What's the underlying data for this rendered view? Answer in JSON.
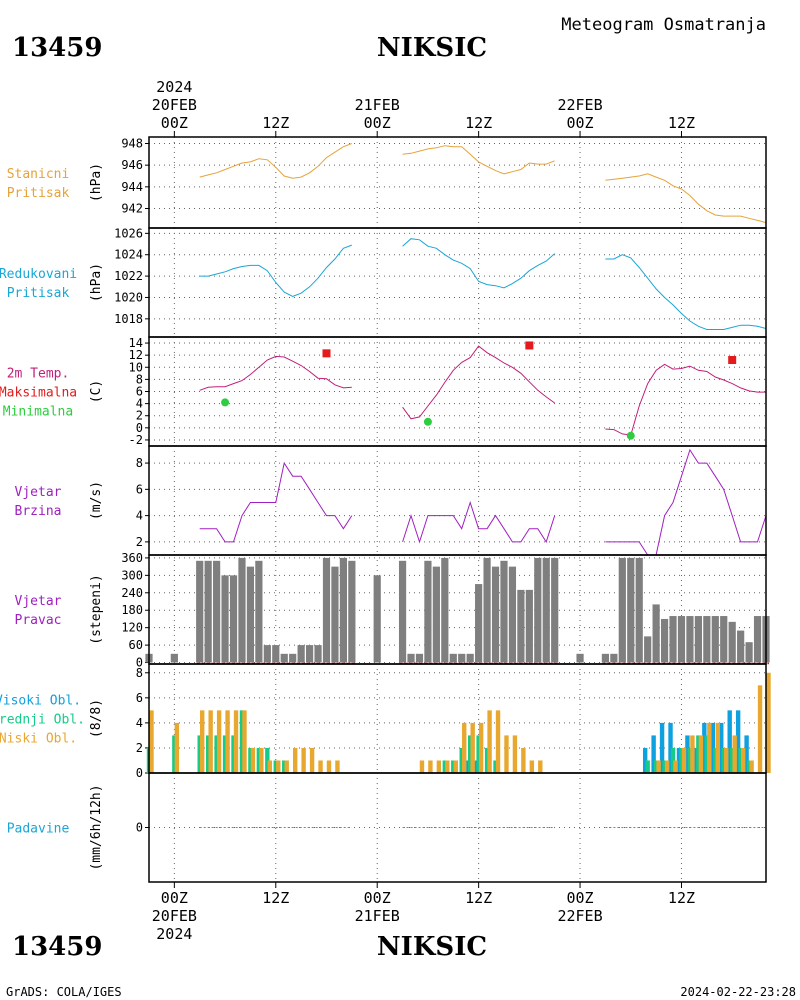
{
  "header": {
    "station_id": "13459",
    "station_name": "NIKSIC",
    "product": "Meteogram Osmatranja"
  },
  "footer": {
    "station_id": "13459",
    "station_name": "NIKSIC",
    "credit": "GrADS: COLA/IGES",
    "timestamp": "2024-02-22-23:28"
  },
  "time_axis": {
    "ticks": [
      {
        "hour": 0,
        "label": "00Z"
      },
      {
        "hour": 12,
        "label": "12Z"
      },
      {
        "hour": 24,
        "label": "00Z"
      },
      {
        "hour": 36,
        "label": "12Z"
      },
      {
        "hour": 48,
        "label": "00Z"
      },
      {
        "hour": 60,
        "label": "12Z"
      }
    ],
    "date_labels": [
      {
        "hour": 0,
        "date": "20FEB",
        "year": "2024"
      },
      {
        "hour": 24,
        "date": "21FEB",
        "year": ""
      },
      {
        "hour": 48,
        "date": "22FEB",
        "year": ""
      }
    ],
    "range_hours": [
      -3,
      70
    ],
    "grid": true
  },
  "colors": {
    "pressure": "#e5a33a",
    "reduced": "#1aa6d6",
    "temp": "#c0207a",
    "tmax": "#e41a1c",
    "tmin": "#2ecc40",
    "wind": "#a020c0",
    "winddir": "#7f7f7f",
    "cl_high": "#0fa0e0",
    "cl_mid": "#14cc88",
    "cl_low": "#e8a830",
    "precip": "#1aa6d6"
  },
  "chart_data": [
    {
      "type": "line",
      "id": "pressure",
      "labels": [
        "Stanicni",
        "Pritisak"
      ],
      "ylabel": "(hPa)",
      "ylim": [
        940.2,
        948.6
      ],
      "yticks": [
        942,
        944,
        946,
        948
      ],
      "series": [
        {
          "x": [
            3,
            4,
            5,
            6,
            7,
            8,
            9,
            10,
            11,
            12,
            13,
            14,
            15,
            16,
            17,
            18,
            19,
            20,
            21
          ],
          "y": [
            944.9,
            945.1,
            945.3,
            945.6,
            945.9,
            946.2,
            946.3,
            946.6,
            946.5,
            945.8,
            945.0,
            944.8,
            944.9,
            945.3,
            945.9,
            946.7,
            947.2,
            947.7,
            948.0
          ]
        },
        {
          "x": [
            27,
            28,
            29,
            30,
            31,
            32,
            33,
            34,
            35,
            36,
            37,
            38,
            39,
            40,
            41,
            42,
            43,
            44,
            45
          ],
          "y": [
            947.0,
            947.1,
            947.3,
            947.5,
            947.6,
            947.8,
            947.7,
            947.7,
            947.0,
            946.3,
            945.9,
            945.5,
            945.2,
            945.4,
            945.6,
            946.2,
            946.1,
            946.1,
            946.4
          ]
        },
        {
          "x": [
            51,
            52,
            53,
            54,
            55,
            56,
            57,
            58,
            59,
            60,
            61,
            62,
            63,
            64,
            65,
            66,
            67,
            68,
            69,
            70
          ],
          "y": [
            944.6,
            944.7,
            944.8,
            944.9,
            945.0,
            945.2,
            944.9,
            944.6,
            944.1,
            943.8,
            943.2,
            942.4,
            941.8,
            941.4,
            941.3,
            941.3,
            941.3,
            941.1,
            940.9,
            940.7
          ]
        }
      ]
    },
    {
      "type": "line",
      "id": "reduced",
      "labels": [
        "Redukovani",
        "Pritisak"
      ],
      "ylabel": "(hPa)",
      "ylim": [
        1016.3,
        1026.5
      ],
      "yticks": [
        1018,
        1020,
        1022,
        1024,
        1026
      ],
      "series": [
        {
          "x": [
            3,
            4,
            5,
            6,
            7,
            8,
            9,
            10,
            11,
            12,
            13,
            14,
            15,
            16,
            17,
            18,
            19,
            20,
            21
          ],
          "y": [
            1022.0,
            1022.0,
            1022.2,
            1022.4,
            1022.7,
            1022.9,
            1023.0,
            1023.0,
            1022.5,
            1021.4,
            1020.5,
            1020.1,
            1020.4,
            1021.0,
            1021.8,
            1022.8,
            1023.6,
            1024.6,
            1024.9
          ]
        },
        {
          "x": [
            27,
            28,
            29,
            30,
            31,
            32,
            33,
            34,
            35,
            36,
            37,
            38,
            39,
            40,
            41,
            42,
            43,
            44,
            45
          ],
          "y": [
            1024.8,
            1025.5,
            1025.4,
            1024.8,
            1024.6,
            1024.0,
            1023.5,
            1023.2,
            1022.7,
            1021.5,
            1021.2,
            1021.1,
            1020.9,
            1021.3,
            1021.8,
            1022.5,
            1023.0,
            1023.4,
            1024.1
          ]
        },
        {
          "x": [
            51,
            52,
            53,
            54,
            55,
            56,
            57,
            58,
            59,
            60,
            61,
            62,
            63,
            64,
            65,
            66,
            67,
            68,
            69,
            70
          ],
          "y": [
            1023.6,
            1023.6,
            1024.0,
            1023.7,
            1022.8,
            1021.8,
            1020.8,
            1020.0,
            1019.3,
            1018.5,
            1017.8,
            1017.3,
            1017.0,
            1017.0,
            1017.0,
            1017.2,
            1017.4,
            1017.4,
            1017.3,
            1017.1
          ]
        }
      ]
    },
    {
      "type": "line",
      "id": "temperature",
      "labels": [
        "2m Temp.",
        "Maksimalna",
        "Minimalna"
      ],
      "ylabel": "(C)",
      "ylim": [
        -3,
        15
      ],
      "yticks": [
        -2,
        0,
        2,
        4,
        6,
        8,
        10,
        12,
        14
      ],
      "series": [
        {
          "x": [
            3,
            4,
            5,
            6,
            7,
            8,
            9,
            10,
            11,
            12,
            13,
            14,
            15,
            16,
            17,
            18,
            19,
            20,
            21
          ],
          "y": [
            6.2,
            6.7,
            6.8,
            6.8,
            7.3,
            7.8,
            8.8,
            10.0,
            11.2,
            11.8,
            11.7,
            11.0,
            10.3,
            9.3,
            8.2,
            8.1,
            7.1,
            6.6,
            6.7
          ]
        },
        {
          "x": [
            27,
            28,
            29,
            30,
            31,
            32,
            33,
            34,
            35,
            36,
            37,
            38,
            39,
            40,
            41,
            42,
            43,
            44,
            45
          ],
          "y": [
            3.4,
            1.5,
            1.8,
            3.6,
            5.4,
            7.5,
            9.5,
            10.8,
            11.6,
            13.5,
            12.4,
            11.6,
            10.7,
            10.0,
            9.0,
            7.6,
            6.2,
            5.1,
            4.1
          ]
        },
        {
          "x": [
            51,
            52,
            53,
            54,
            55,
            56,
            57,
            58,
            59,
            60,
            61,
            62,
            63,
            64,
            65,
            66,
            67,
            68,
            69,
            70
          ],
          "y": [
            -0.2,
            -0.3,
            -1.0,
            -1.2,
            3.6,
            7.3,
            9.5,
            10.5,
            9.7,
            9.8,
            10.2,
            9.5,
            9.3,
            8.4,
            7.9,
            7.3,
            6.6,
            6.1,
            5.9,
            5.9
          ]
        }
      ],
      "max_points": [
        {
          "x": 18,
          "y": 12.3
        },
        {
          "x": 42,
          "y": 13.6
        },
        {
          "x": 66,
          "y": 11.2
        }
      ],
      "min_points": [
        {
          "x": 6,
          "y": 4.2
        },
        {
          "x": 30,
          "y": 1.0
        },
        {
          "x": 54,
          "y": -1.3
        }
      ]
    },
    {
      "type": "line",
      "id": "wind_speed",
      "labels": [
        "Vjetar",
        "Brzina"
      ],
      "ylabel": "(m/s)",
      "ylim": [
        1,
        9.3
      ],
      "yticks": [
        2,
        4,
        6,
        8
      ],
      "series": [
        {
          "x": [
            3,
            4,
            5,
            6,
            7,
            8,
            9,
            10,
            11,
            12,
            13,
            14,
            15,
            16,
            17,
            18,
            19,
            20,
            21
          ],
          "y": [
            3,
            3,
            3,
            2,
            2,
            4,
            5,
            5,
            5,
            5,
            8,
            7,
            7,
            6,
            5,
            4,
            4,
            3,
            4
          ]
        },
        {
          "x": [
            27,
            28,
            29,
            30,
            31,
            32,
            33,
            34,
            35,
            36,
            37,
            38,
            39,
            40,
            41,
            42,
            43,
            44,
            45
          ],
          "y": [
            2,
            4,
            2,
            4,
            4,
            4,
            4,
            3,
            5,
            3,
            3,
            4,
            3,
            2,
            2,
            3,
            3,
            2,
            4
          ]
        },
        {
          "x": [
            51,
            52,
            53,
            54,
            55,
            56,
            57,
            58,
            59,
            60,
            61,
            62,
            63,
            64,
            65,
            66,
            67,
            68,
            69,
            70
          ],
          "y": [
            2,
            2,
            2,
            2,
            2,
            1,
            1,
            4,
            5,
            7,
            9,
            8,
            8,
            7,
            6,
            4,
            2,
            2,
            2,
            4
          ]
        }
      ]
    },
    {
      "type": "bar",
      "id": "wind_direction",
      "labels": [
        "Vjetar",
        "Pravac"
      ],
      "ylabel": "(stepeni)",
      "ylim": [
        -5,
        370
      ],
      "yticks": [
        0,
        60,
        120,
        180,
        240,
        300,
        360
      ],
      "x": [
        -3,
        0,
        3,
        4,
        5,
        6,
        7,
        8,
        9,
        10,
        11,
        12,
        13,
        14,
        15,
        16,
        17,
        18,
        19,
        20,
        21,
        24,
        27,
        28,
        29,
        30,
        31,
        32,
        33,
        34,
        35,
        36,
        37,
        38,
        39,
        40,
        41,
        42,
        43,
        44,
        45,
        48,
        51,
        52,
        53,
        54,
        55,
        56,
        57,
        58,
        59,
        60,
        61,
        62,
        63,
        64,
        65,
        66,
        67,
        68,
        69,
        70
      ],
      "values": [
        30,
        30,
        350,
        350,
        350,
        300,
        300,
        360,
        330,
        350,
        60,
        60,
        30,
        30,
        60,
        60,
        60,
        360,
        330,
        360,
        350,
        300,
        350,
        30,
        30,
        350,
        330,
        360,
        30,
        30,
        30,
        270,
        360,
        330,
        350,
        330,
        250,
        250,
        360,
        360,
        360,
        30,
        30,
        30,
        360,
        360,
        360,
        90,
        200,
        150,
        160,
        160,
        160,
        160,
        160,
        160,
        160,
        140,
        110,
        70,
        160,
        160
      ]
    },
    {
      "type": "bar",
      "id": "cloud_cover",
      "labels": [
        "Visoki Obl.",
        "Srednji Obl.",
        "Niski Obl."
      ],
      "ylabel": "(8/8)",
      "ylim": [
        0,
        8.7
      ],
      "yticks": [
        0,
        2,
        4,
        6,
        8
      ],
      "x": [
        -3,
        0,
        3,
        4,
        5,
        6,
        7,
        8,
        9,
        10,
        11,
        12,
        13,
        14,
        15,
        16,
        17,
        18,
        19,
        20,
        21,
        24,
        27,
        28,
        29,
        30,
        31,
        32,
        33,
        34,
        35,
        36,
        37,
        38,
        39,
        40,
        41,
        42,
        43,
        44,
        45,
        48,
        51,
        52,
        53,
        54,
        55,
        56,
        57,
        58,
        59,
        60,
        61,
        62,
        63,
        64,
        65,
        66,
        67,
        68,
        69,
        70
      ],
      "series": [
        {
          "name": "Visoki Obl.",
          "values": [
            0,
            0,
            0,
            0,
            0,
            0,
            0,
            0,
            0,
            0,
            0,
            0,
            0,
            0,
            0,
            0,
            0,
            0,
            0,
            0,
            0,
            0,
            0,
            0,
            0,
            0,
            0,
            0,
            0,
            0,
            1,
            1,
            0,
            0,
            0,
            0,
            0,
            0,
            0,
            0,
            0,
            0,
            0,
            0,
            0,
            0,
            0,
            2,
            3,
            4,
            4,
            2,
            3,
            2,
            4,
            4,
            4,
            5,
            5,
            3,
            0,
            0
          ]
        },
        {
          "name": "Srednji Obl.",
          "values": [
            2,
            3,
            3,
            3,
            3,
            3,
            3,
            5,
            2,
            2,
            2,
            1,
            1,
            0,
            0,
            0,
            0,
            0,
            0,
            0,
            0,
            0,
            0,
            0,
            0,
            0,
            0,
            1,
            1,
            2,
            3,
            3,
            2,
            1,
            0,
            0,
            0,
            0,
            0,
            0,
            0,
            0,
            0,
            0,
            0,
            0,
            0,
            1,
            1,
            1,
            2,
            2,
            2,
            3,
            3,
            2,
            2,
            2,
            2,
            1,
            0,
            0
          ]
        },
        {
          "name": "Niski Obl.",
          "values": [
            5,
            4,
            5,
            5,
            5,
            5,
            5,
            5,
            2,
            2,
            1,
            1,
            1,
            2,
            2,
            2,
            1,
            1,
            1,
            0,
            0,
            0,
            0,
            0,
            1,
            1,
            1,
            1,
            1,
            4,
            4,
            4,
            5,
            5,
            3,
            3,
            2,
            1,
            1,
            0,
            0,
            0,
            0,
            0,
            0,
            0,
            0,
            0,
            1,
            1,
            1,
            2,
            3,
            3,
            4,
            4,
            2,
            3,
            2,
            1,
            7,
            8
          ]
        }
      ]
    },
    {
      "type": "line",
      "id": "precipitation",
      "labels": [
        "Padavine"
      ],
      "ylabel": "(mm/6h/12h)",
      "ylim": [
        -5,
        5
      ],
      "yticks": [
        0
      ],
      "series": [
        {
          "x": [
            3,
            21
          ],
          "y": [
            0,
            0
          ]
        },
        {
          "x": [
            27,
            45
          ],
          "y": [
            0,
            0
          ]
        },
        {
          "x": [
            51,
            70
          ],
          "y": [
            0,
            0
          ]
        }
      ]
    }
  ]
}
